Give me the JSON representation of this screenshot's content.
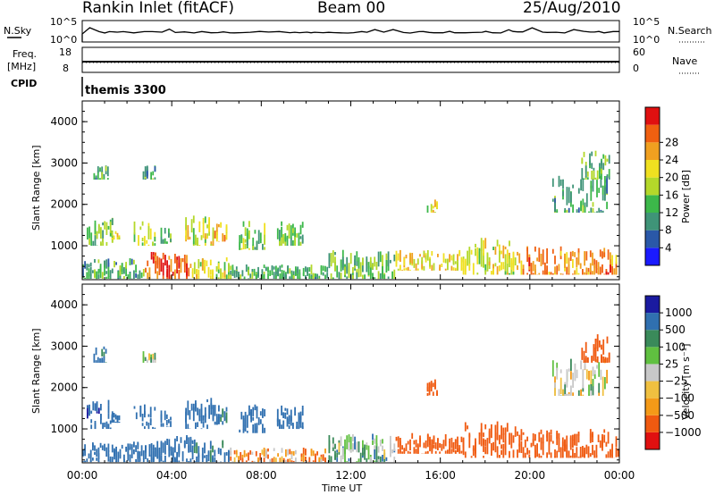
{
  "header": {
    "station": "Rankin Inlet (fitACF)",
    "beam": "Beam 00",
    "date": "25/Aug/2010"
  },
  "strips": {
    "nsky": {
      "label": "N.Sky",
      "ticks_left": [
        "10^5",
        "10^0"
      ],
      "ticks_right": [
        "10^5",
        "10^0"
      ],
      "right_label": "N.Search"
    },
    "freq": {
      "label": "Freq.",
      "unit": "[MHz]",
      "ticks_left": [
        "18",
        "8"
      ],
      "ticks_right": [
        "60",
        "0"
      ],
      "right_label": "Nave"
    },
    "cpid": {
      "label": "CPID",
      "program": "themis 3300"
    }
  },
  "colors": {
    "power": [
      "#1a1aff",
      "#2a58a8",
      "#3f9478",
      "#3cb84a",
      "#b4d82a",
      "#f0e020",
      "#f0a020",
      "#f06010",
      "#e01010"
    ],
    "velocity": [
      "#e01010",
      "#f05a10",
      "#f49a18",
      "#f0c040",
      "#c8c8c8",
      "#60c040",
      "#3a8a5a",
      "#3070b0",
      "#1a1aa0"
    ]
  },
  "chart_data": [
    {
      "type": "heatmap",
      "title": "",
      "xlabel": "",
      "ylabel": "Slant Range [km]",
      "xlim": [
        "00:00",
        "24:00"
      ],
      "ylim": [
        180,
        4500
      ],
      "yticks": [
        "1000",
        "2000",
        "3000",
        "4000"
      ],
      "colorbar": {
        "label": "Power [dB]",
        "ticks": [
          "4",
          "8",
          "12",
          "16",
          "20",
          "24",
          "28"
        ],
        "range": [
          0,
          30
        ]
      },
      "regions": [
        {
          "t0": 0.5,
          "t1": 1.2,
          "r0": 2600,
          "r1": 3000,
          "v": 10
        },
        {
          "t0": 2.7,
          "t1": 3.3,
          "r0": 2600,
          "r1": 2950,
          "v": 9
        },
        {
          "t0": 0.2,
          "t1": 1.4,
          "r0": 1000,
          "r1": 1700,
          "v": 12
        },
        {
          "t0": 1.3,
          "t1": 1.7,
          "r0": 1150,
          "r1": 1400,
          "v": 16
        },
        {
          "t0": 2.3,
          "t1": 3.3,
          "r0": 1000,
          "r1": 1600,
          "v": 14
        },
        {
          "t0": 3.5,
          "t1": 4.0,
          "r0": 1050,
          "r1": 1450,
          "v": 12
        },
        {
          "t0": 4.6,
          "t1": 5.9,
          "r0": 1000,
          "r1": 1750,
          "v": 17
        },
        {
          "t0": 5.9,
          "t1": 6.5,
          "r0": 1100,
          "r1": 1600,
          "v": 20
        },
        {
          "t0": 7.0,
          "t1": 8.2,
          "r0": 900,
          "r1": 1600,
          "v": 13
        },
        {
          "t0": 8.7,
          "t1": 9.9,
          "r0": 1000,
          "r1": 1600,
          "v": 12
        },
        {
          "t0": 0.0,
          "t1": 2.8,
          "r0": 200,
          "r1": 700,
          "v": 10
        },
        {
          "t0": 2.8,
          "t1": 4.9,
          "r0": 200,
          "r1": 850,
          "v": 25
        },
        {
          "t0": 4.9,
          "t1": 6.6,
          "r0": 200,
          "r1": 750,
          "v": 16
        },
        {
          "t0": 6.6,
          "t1": 11.0,
          "r0": 200,
          "r1": 550,
          "v": 11
        },
        {
          "t0": 11.0,
          "t1": 14.0,
          "r0": 200,
          "r1": 900,
          "v": 12
        },
        {
          "t0": 14.0,
          "t1": 17.0,
          "r0": 400,
          "r1": 900,
          "v": 19
        },
        {
          "t0": 17.0,
          "t1": 19.5,
          "r0": 300,
          "r1": 1200,
          "v": 17
        },
        {
          "t0": 19.5,
          "t1": 24.0,
          "r0": 300,
          "r1": 1000,
          "v": 23
        },
        {
          "t0": 15.4,
          "t1": 15.9,
          "r0": 1800,
          "r1": 2200,
          "v": 17
        },
        {
          "t0": 21.0,
          "t1": 23.5,
          "r0": 1800,
          "r1": 2700,
          "v": 10
        },
        {
          "t0": 22.3,
          "t1": 23.6,
          "r0": 2600,
          "r1": 3300,
          "v": 12
        }
      ]
    },
    {
      "type": "heatmap",
      "title": "",
      "xlabel": "Time UT",
      "ylabel": "Slant Range [km]",
      "xlim": [
        "00:00",
        "24:00"
      ],
      "ylim": [
        180,
        4500
      ],
      "xticks": [
        "00:00",
        "04:00",
        "08:00",
        "12:00",
        "16:00",
        "20:00",
        "00:00"
      ],
      "yticks": [
        "1000",
        "2000",
        "3000",
        "4000"
      ],
      "colorbar": {
        "label": "Velocity [m s⁻¹]",
        "ticks": [
          "1000",
          "500",
          "100",
          "25",
          "−25",
          "−100",
          "−500",
          "−1000"
        ],
        "range": [
          -1000,
          1000
        ]
      },
      "regions": [
        {
          "t0": 0.5,
          "t1": 1.2,
          "r0": 2600,
          "r1": 3000,
          "v": 150
        },
        {
          "t0": 2.7,
          "t1": 3.3,
          "r0": 2600,
          "r1": 2950,
          "v": 0
        },
        {
          "t0": 0.2,
          "t1": 1.4,
          "r0": 1000,
          "r1": 1700,
          "v": 450
        },
        {
          "t0": 1.3,
          "t1": 1.7,
          "r0": 1150,
          "r1": 1400,
          "v": 300
        },
        {
          "t0": 2.3,
          "t1": 3.3,
          "r0": 1000,
          "r1": 1600,
          "v": 400
        },
        {
          "t0": 3.5,
          "t1": 4.0,
          "r0": 1050,
          "r1": 1450,
          "v": 200
        },
        {
          "t0": 4.6,
          "t1": 5.9,
          "r0": 1000,
          "r1": 1750,
          "v": 220
        },
        {
          "t0": 5.9,
          "t1": 6.5,
          "r0": 1100,
          "r1": 1600,
          "v": 150
        },
        {
          "t0": 7.0,
          "t1": 8.2,
          "r0": 900,
          "r1": 1600,
          "v": 350
        },
        {
          "t0": 8.7,
          "t1": 9.9,
          "r0": 1000,
          "r1": 1600,
          "v": 350
        },
        {
          "t0": 0.0,
          "t1": 2.8,
          "r0": 200,
          "r1": 700,
          "v": 200
        },
        {
          "t0": 2.8,
          "t1": 4.9,
          "r0": 200,
          "r1": 850,
          "v": 200
        },
        {
          "t0": 4.9,
          "t1": 6.6,
          "r0": 200,
          "r1": 750,
          "v": 150
        },
        {
          "t0": 6.6,
          "t1": 11.0,
          "r0": 200,
          "r1": 550,
          "v": -80
        },
        {
          "t0": 11.0,
          "t1": 14.0,
          "r0": 200,
          "r1": 900,
          "v": 50
        },
        {
          "t0": 14.0,
          "t1": 17.0,
          "r0": 400,
          "r1": 900,
          "v": -300
        },
        {
          "t0": 17.0,
          "t1": 19.5,
          "r0": 300,
          "r1": 1200,
          "v": -200
        },
        {
          "t0": 19.5,
          "t1": 24.0,
          "r0": 300,
          "r1": 1000,
          "v": -250
        },
        {
          "t0": 15.4,
          "t1": 15.9,
          "r0": 1800,
          "r1": 2200,
          "v": -300
        },
        {
          "t0": 21.0,
          "t1": 23.5,
          "r0": 1800,
          "r1": 2700,
          "v": 0
        },
        {
          "t0": 22.3,
          "t1": 23.6,
          "r0": 2600,
          "r1": 3300,
          "v": -400
        }
      ]
    }
  ]
}
